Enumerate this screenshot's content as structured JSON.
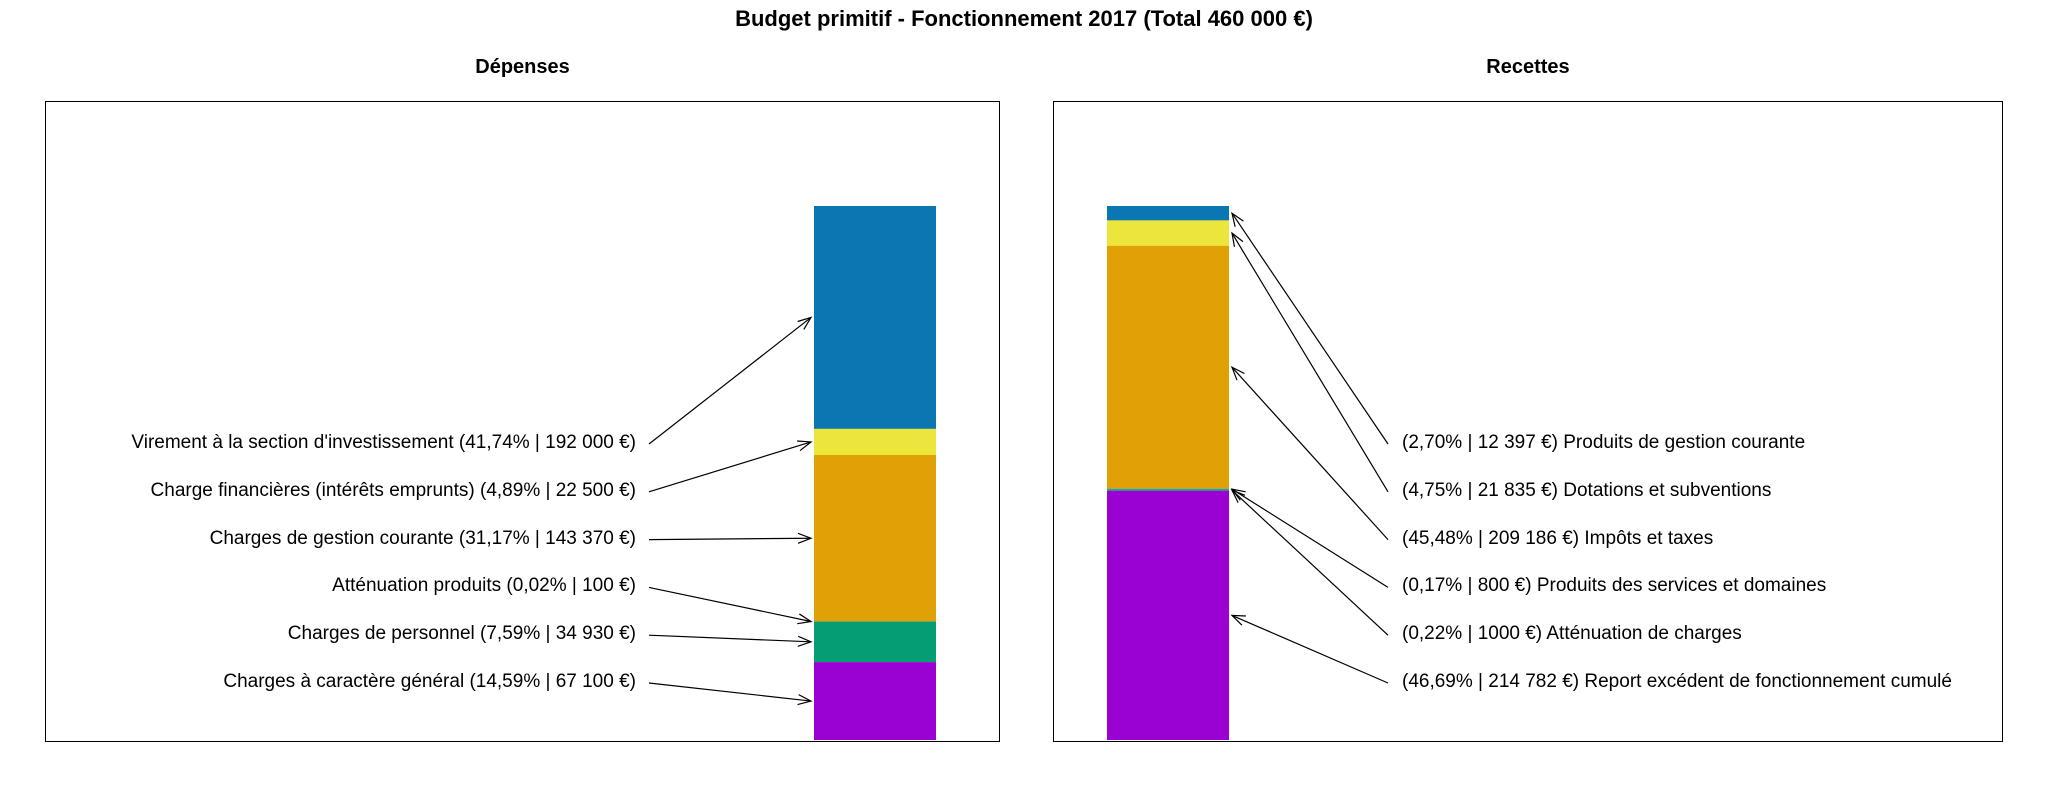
{
  "title": "Budget primitif - Fonctionnement 2017 (Total 460 000 €)",
  "total": "460 000 €",
  "colors": {
    "blue": "#0a76b2",
    "yellow": "#ece53c",
    "orange": "#e1a005",
    "green": "#059e74",
    "teal_sliver": "#2aa795",
    "purple": "#9a01d3",
    "arrow": "#000000",
    "border": "#000000",
    "background": "#ffffff"
  },
  "chart_data": [
    {
      "type": "bar",
      "subtype": "stacked_percentage_bar",
      "title": "Dépenses",
      "label_side": "left",
      "legend_position": "none",
      "grid": false,
      "segments": [
        {
          "name": "Virement à la section d'investissement",
          "pct": 41.74,
          "amount_eur": 192000,
          "label": "Virement à la section d'investissement (41,74% | 192 000 €)",
          "color": "#0a76b2"
        },
        {
          "name": "Charge financières (intérêts emprunts)",
          "pct": 4.89,
          "amount_eur": 22500,
          "label": "Charge financières (intérêts emprunts) (4,89% | 22 500 €)",
          "color": "#ece53c"
        },
        {
          "name": "Charges de gestion courante",
          "pct": 31.17,
          "amount_eur": 143370,
          "label": "Charges de gestion courante (31,17% | 143 370 €)",
          "color": "#e1a005"
        },
        {
          "name": "Atténuation produits",
          "pct": 0.02,
          "amount_eur": 100,
          "label": "Atténuation produits (0,02% | 100 €)",
          "color": "#059e74"
        },
        {
          "name": "Charges de personnel",
          "pct": 7.59,
          "amount_eur": 34930,
          "label": "Charges de personnel (7,59% | 34 930 €)",
          "color": "#059e74"
        },
        {
          "name": "Charges à caractère général",
          "pct": 14.59,
          "amount_eur": 67100,
          "label": "Charges à caractère général (14,59% | 67 100 €)",
          "color": "#9a01d3"
        }
      ]
    },
    {
      "type": "bar",
      "subtype": "stacked_percentage_bar",
      "title": "Recettes",
      "label_side": "right",
      "legend_position": "none",
      "grid": false,
      "segments": [
        {
          "name": "Produits de gestion courante",
          "pct": 2.7,
          "amount_eur": 12397,
          "label": "(2,70% | 12 397 €) Produits de gestion courante",
          "color": "#0a76b2"
        },
        {
          "name": "Dotations et subventions",
          "pct": 4.75,
          "amount_eur": 21835,
          "label": "(4,75% | 21 835 €) Dotations et subventions",
          "color": "#ece53c"
        },
        {
          "name": "Impôts et taxes",
          "pct": 45.48,
          "amount_eur": 209186,
          "label": "(45,48% | 209 186 €) Impôts et taxes",
          "color": "#e1a005"
        },
        {
          "name": "Produits des services et domaines",
          "pct": 0.17,
          "amount_eur": 800,
          "label": "(0,17% | 800 €) Produits des services et domaines",
          "color": "#2aa795"
        },
        {
          "name": "Atténuation de charges",
          "pct": 0.22,
          "amount_eur": 1000,
          "label": "(0,22% | 1000 €) Atténuation de charges",
          "color": "#059e74"
        },
        {
          "name": "Report excédent de fonctionnement cumulé",
          "pct": 46.69,
          "amount_eur": 214782,
          "label": "(46,69% | 214 782 €) Report excédent de fonctionnement cumulé",
          "color": "#9a01d3"
        }
      ]
    }
  ]
}
